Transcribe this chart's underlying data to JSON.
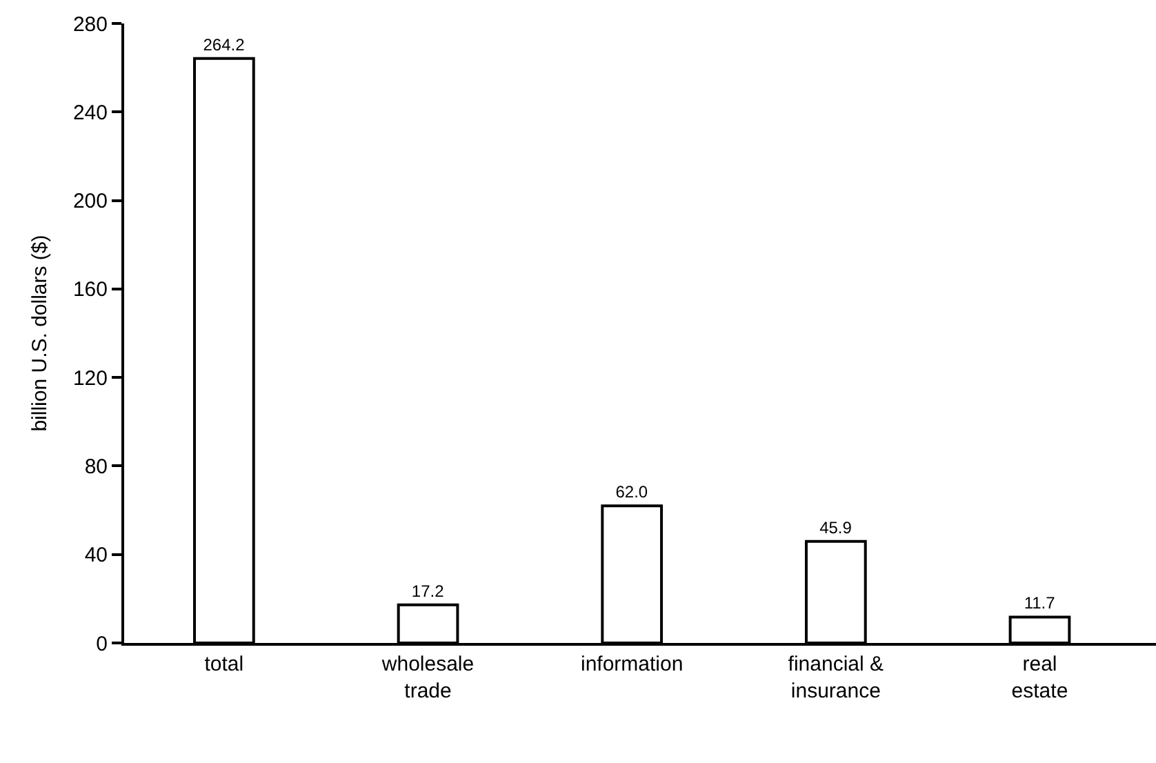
{
  "chart_data": {
    "type": "bar",
    "ylabel": "billion U.S. dollars ($)",
    "categories": [
      "total",
      "wholesale\ntrade",
      "information",
      "financial &\ninsurance",
      "real\nestate"
    ],
    "values": [
      264.2,
      17.2,
      62.0,
      45.9,
      11.7
    ],
    "value_labels": [
      "264.2",
      "17.2",
      "62.0",
      "45.9",
      "11.7"
    ],
    "color": "#ffffff",
    "ylim": [
      0,
      280
    ],
    "yticks": [
      0,
      40,
      80,
      120,
      160,
      200,
      240,
      280
    ]
  }
}
